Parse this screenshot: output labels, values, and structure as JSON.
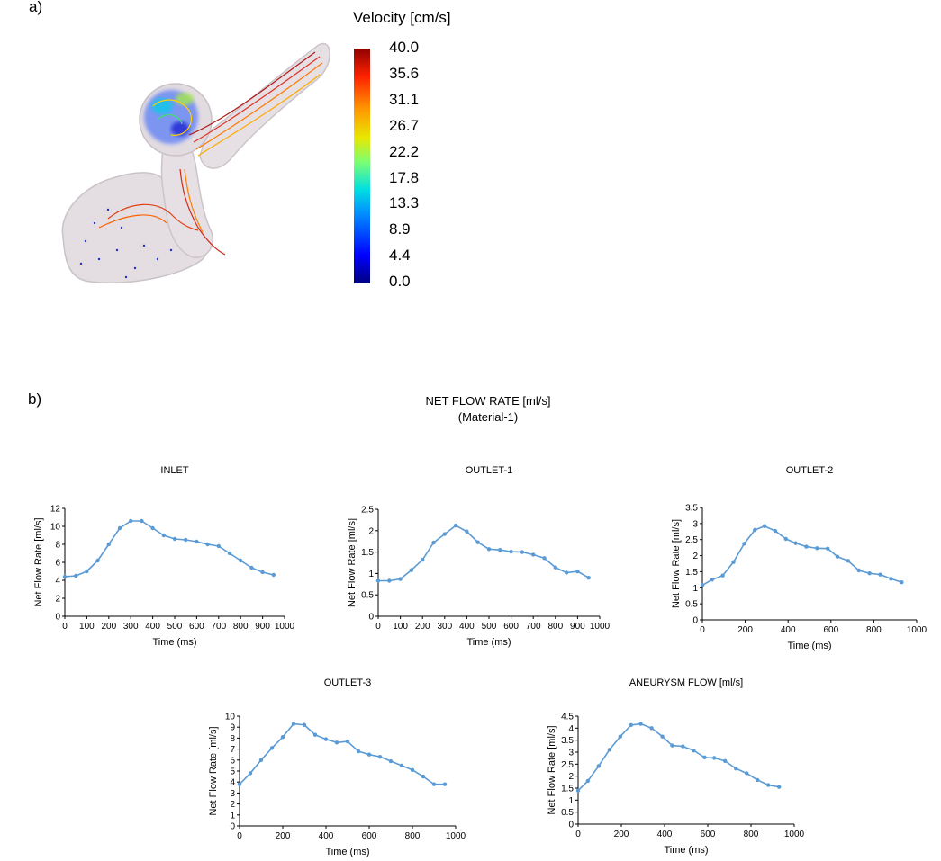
{
  "panel_a": {
    "label": "a)",
    "colorbar": {
      "title": "Velocity [cm/s]",
      "ticks": [
        "40.0",
        "35.6",
        "31.1",
        "26.7",
        "22.2",
        "17.8",
        "13.3",
        "8.9",
        "4.4",
        "0.0"
      ]
    }
  },
  "panel_b": {
    "label": "b)",
    "title": "NET FLOW RATE [ml/s]",
    "subtitle": "(Material-1)"
  },
  "chart_data": [
    {
      "type": "line",
      "title": "INLET",
      "xlabel": "Time (ms)",
      "ylabel": "Net Flow Rate [ml/s]",
      "xlim": [
        0,
        1000
      ],
      "xticks": [
        0,
        100,
        200,
        300,
        400,
        500,
        600,
        700,
        800,
        900,
        1000
      ],
      "ylim": [
        0,
        12
      ],
      "yticks": [
        0,
        2,
        4,
        6,
        8,
        10,
        12
      ],
      "series": [
        {
          "x": [
            0,
            50,
            100,
            150,
            200,
            250,
            300,
            350,
            400,
            450,
            500,
            550,
            600,
            650,
            700,
            750,
            800,
            850,
            900,
            950
          ],
          "y": [
            4.4,
            4.5,
            5.0,
            6.2,
            8.0,
            9.8,
            10.6,
            10.6,
            9.8,
            9.0,
            8.6,
            8.5,
            8.3,
            8.0,
            7.8,
            7.0,
            6.2,
            5.4,
            4.9,
            4.6
          ]
        }
      ]
    },
    {
      "type": "line",
      "title": "OUTLET-1",
      "xlabel": "Time (ms)",
      "ylabel": "Net Flow Rate [ml/s]",
      "xlim": [
        0,
        1000
      ],
      "xticks": [
        0,
        100,
        200,
        300,
        400,
        500,
        600,
        700,
        800,
        900,
        1000
      ],
      "ylim": [
        0,
        2.5
      ],
      "yticks": [
        "0",
        "0.5",
        "1",
        "1.5",
        "2",
        "2.5"
      ],
      "series": [
        {
          "x": [
            0,
            50,
            100,
            150,
            200,
            250,
            300,
            350,
            400,
            450,
            500,
            550,
            600,
            650,
            700,
            750,
            800,
            850,
            900,
            950
          ],
          "y": [
            0.83,
            0.83,
            0.87,
            1.08,
            1.32,
            1.72,
            1.92,
            2.12,
            1.98,
            1.73,
            1.57,
            1.55,
            1.51,
            1.5,
            1.44,
            1.36,
            1.14,
            1.02,
            1.05,
            0.9
          ]
        }
      ]
    },
    {
      "type": "line",
      "title": "OUTLET-2",
      "xlabel": "Time (ms)",
      "ylabel": "Net Flow Rate [ml/s]",
      "xlim": [
        0,
        1000
      ],
      "xticks": [
        0,
        200,
        400,
        600,
        800,
        1000
      ],
      "ylim": [
        0,
        3.5
      ],
      "yticks": [
        "0",
        "0.5",
        "1",
        "1.5",
        "2",
        "2.5",
        "3",
        "3.5"
      ],
      "series": [
        {
          "x": [
            0,
            45,
            95,
            145,
            195,
            245,
            290,
            340,
            390,
            435,
            485,
            535,
            585,
            630,
            680,
            730,
            780,
            830,
            880,
            930
          ],
          "y": [
            1.08,
            1.25,
            1.38,
            1.8,
            2.37,
            2.8,
            2.92,
            2.77,
            2.52,
            2.39,
            2.28,
            2.23,
            2.22,
            1.97,
            1.84,
            1.54,
            1.45,
            1.41,
            1.28,
            1.17
          ]
        }
      ]
    },
    {
      "type": "line",
      "title": "OUTLET-3",
      "xlabel": "Time (ms)",
      "ylabel": "Net Flow Rate [ml/s]",
      "xlim": [
        0,
        1000
      ],
      "xticks": [
        0,
        200,
        400,
        600,
        800,
        1000
      ],
      "ylim": [
        0,
        10
      ],
      "yticks": [
        0,
        1,
        2,
        3,
        4,
        5,
        6,
        7,
        8,
        9,
        10
      ],
      "series": [
        {
          "x": [
            0,
            50,
            100,
            150,
            200,
            250,
            300,
            350,
            400,
            450,
            500,
            550,
            600,
            650,
            700,
            750,
            800,
            850,
            900,
            950
          ],
          "y": [
            3.8,
            4.8,
            6.0,
            7.1,
            8.1,
            9.3,
            9.2,
            8.3,
            7.9,
            7.6,
            7.7,
            6.8,
            6.5,
            6.3,
            5.9,
            5.5,
            5.1,
            4.5,
            3.8,
            3.8
          ]
        }
      ]
    },
    {
      "type": "line",
      "title": "ANEURYSM FLOW [ml/s]",
      "xlabel": "Time (ms)",
      "ylabel": "Net Flow Rate [ml/s]",
      "xlim": [
        0,
        1000
      ],
      "xticks": [
        0,
        200,
        400,
        600,
        800,
        1000
      ],
      "ylim": [
        0,
        4.5
      ],
      "yticks": [
        "0",
        "0.5",
        "1",
        "1.5",
        "2",
        "2.5",
        "3",
        "3.5",
        "4",
        "4.5"
      ],
      "series": [
        {
          "x": [
            0,
            45,
            95,
            145,
            195,
            245,
            290,
            340,
            390,
            435,
            485,
            535,
            585,
            630,
            680,
            730,
            780,
            830,
            880,
            930
          ],
          "y": [
            1.4,
            1.8,
            2.42,
            3.1,
            3.65,
            4.13,
            4.18,
            4.0,
            3.65,
            3.28,
            3.24,
            3.07,
            2.78,
            2.76,
            2.63,
            2.32,
            2.12,
            1.84,
            1.63,
            1.55
          ]
        }
      ]
    }
  ]
}
